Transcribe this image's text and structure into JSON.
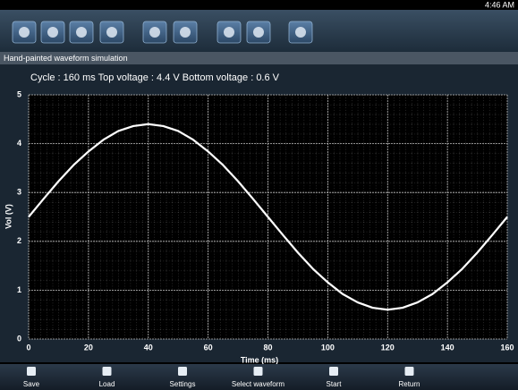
{
  "status_bar": {
    "time": "4:46 AM"
  },
  "title_bar": "Hand-painted waveform simulation",
  "info": "Cycle : 160 ms  Top voltage : 4.4  V  Bottom voltage : 0.6  V",
  "chart_data": {
    "type": "line",
    "xlabel": "Time (ms)",
    "ylabel": "Vol (V)",
    "x": [
      0,
      5,
      10,
      15,
      20,
      25,
      30,
      35,
      40,
      45,
      50,
      55,
      60,
      65,
      70,
      75,
      80,
      85,
      90,
      95,
      100,
      105,
      110,
      115,
      120,
      125,
      130,
      135,
      140,
      145,
      150,
      155,
      160
    ],
    "values": [
      2.5,
      2.87,
      3.23,
      3.56,
      3.84,
      4.08,
      4.26,
      4.36,
      4.4,
      4.36,
      4.26,
      4.08,
      3.84,
      3.56,
      3.23,
      2.87,
      2.5,
      2.13,
      1.77,
      1.44,
      1.16,
      0.92,
      0.75,
      0.64,
      0.6,
      0.64,
      0.75,
      0.92,
      1.16,
      1.44,
      1.77,
      2.13,
      2.5
    ],
    "color": "#ffffff",
    "xlim": [
      0,
      160
    ],
    "xticks": [
      0,
      20,
      40,
      60,
      80,
      100,
      120,
      140,
      160
    ],
    "ylim": [
      0,
      5
    ],
    "yticks": [
      0,
      1,
      2,
      3,
      4,
      5
    ],
    "grid": true
  },
  "buttons": [
    "Save",
    "Load",
    "Settings",
    "Select waveform",
    "Start",
    "Return"
  ]
}
